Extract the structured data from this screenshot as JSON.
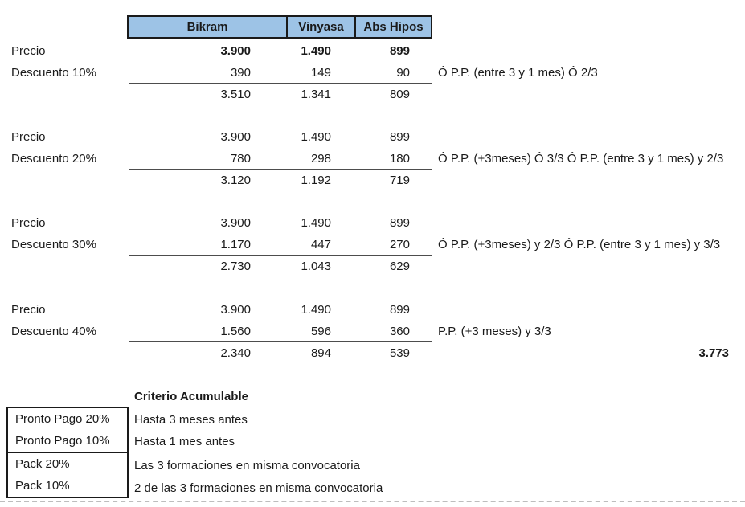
{
  "colors": {
    "header_fill": "#9DC3E6",
    "border": "#1a1a1a",
    "sum_line": "#4d4d4d",
    "page_break_dash": "#bdbdbd"
  },
  "header": {
    "columns": [
      "Bikram",
      "Vinyasa",
      "Abs Hipos"
    ]
  },
  "blocks": [
    {
      "price_label": "Precio",
      "discount_label": "Descuento 10%",
      "price": [
        "3.900",
        "1.490",
        "899"
      ],
      "discount": [
        "390",
        "149",
        "90"
      ],
      "total": [
        "3.510",
        "1.341",
        "809"
      ],
      "note": "Ó P.P. (entre 3 y 1 mes) Ó 2/3"
    },
    {
      "price_label": "Precio",
      "discount_label": "Descuento 20%",
      "price": [
        "3.900",
        "1.490",
        "899"
      ],
      "discount": [
        "780",
        "298",
        "180"
      ],
      "total": [
        "3.120",
        "1.192",
        "719"
      ],
      "note": "Ó P.P. (+3meses) Ó 3/3 Ó P.P. (entre 3 y 1 mes) y 2/3"
    },
    {
      "price_label": "Precio",
      "discount_label": "Descuento 30%",
      "price": [
        "3.900",
        "1.490",
        "899"
      ],
      "discount": [
        "1.170",
        "447",
        "270"
      ],
      "total": [
        "2.730",
        "1.043",
        "629"
      ],
      "note": "Ó P.P. (+3meses) y 2/3 Ó P.P. (entre 3 y 1 mes) y 3/3"
    },
    {
      "price_label": "Precio",
      "discount_label": "Descuento 40%",
      "price": [
        "3.900",
        "1.490",
        "899"
      ],
      "discount": [
        "1.560",
        "596",
        "360"
      ],
      "total": [
        "2.340",
        "894",
        "539"
      ],
      "note": "P.P. (+3 meses) y 3/3"
    }
  ],
  "grand_total": "3.773",
  "legend": {
    "title": "Criterio Acumulable",
    "groups": [
      {
        "items": [
          {
            "label": "Pronto Pago 20%",
            "desc": "Hasta 3 meses antes"
          },
          {
            "label": "Pronto Pago 10%",
            "desc": "Hasta 1 mes antes"
          }
        ]
      },
      {
        "items": [
          {
            "label": "Pack 20%",
            "desc": "Las 3 formaciones en misma convocatoria"
          },
          {
            "label": "Pack 10%",
            "desc": "2 de las 3 formaciones en misma convocatoria"
          }
        ]
      }
    ]
  }
}
